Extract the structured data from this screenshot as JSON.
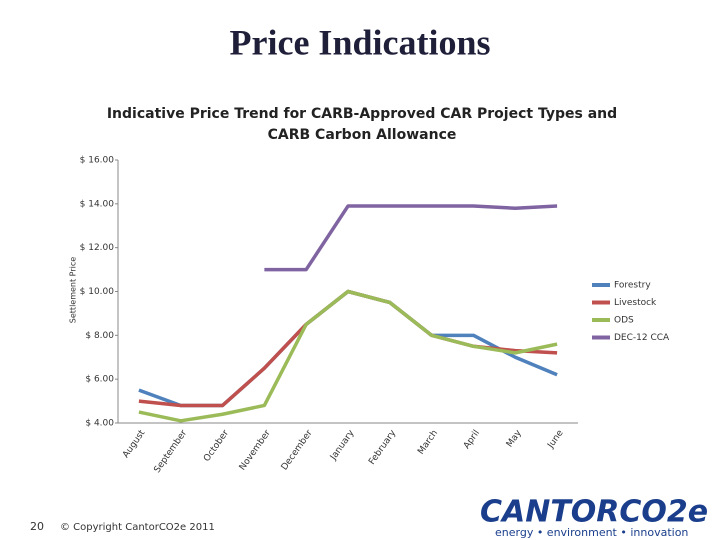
{
  "slide_title": "Price Indications",
  "chart_data": {
    "type": "line",
    "title": "Indicative Price Trend for CARB-Approved CAR Project Types and CARB Carbon Allowance",
    "y_label": "Settlement Price",
    "categories": [
      "August",
      "September",
      "October",
      "November",
      "December",
      "January",
      "February",
      "March",
      "April",
      "May",
      "June"
    ],
    "series": [
      {
        "name": "Forestry",
        "color": "#4f81bd",
        "values": [
          5.5,
          4.8,
          4.8,
          6.5,
          8.5,
          10.0,
          9.5,
          8.0,
          8.0,
          7.0,
          6.2
        ]
      },
      {
        "name": "Livestock",
        "color": "#c0504d",
        "values": [
          5.0,
          4.8,
          4.8,
          6.5,
          8.5,
          10.0,
          9.5,
          8.0,
          7.5,
          7.3,
          7.2
        ]
      },
      {
        "name": "ODS",
        "color": "#9bbb59",
        "values": [
          4.5,
          4.1,
          4.4,
          4.8,
          8.5,
          10.0,
          9.5,
          8.0,
          7.5,
          7.2,
          7.6
        ]
      },
      {
        "name": "DEC-12 CCA",
        "color": "#8064a2",
        "values": [
          null,
          null,
          null,
          11.0,
          11.0,
          13.9,
          13.9,
          13.9,
          13.9,
          13.8,
          13.9
        ]
      }
    ],
    "ylim": [
      4,
      16
    ],
    "yticks": [
      {
        "value": 4,
        "label": "$ 4.00"
      },
      {
        "value": 6,
        "label": "$ 6.00"
      },
      {
        "value": 8,
        "label": "$ 8.00"
      },
      {
        "value": 10,
        "label": "$ 10.00"
      },
      {
        "value": 12,
        "label": "$ 12.00"
      },
      {
        "value": 14,
        "label": "$ 14.00"
      },
      {
        "value": 16,
        "label": "$ 16.00"
      }
    ],
    "grid": false,
    "legend": "right"
  },
  "footer": {
    "page_number": "20",
    "copyright": "© Copyright CantorCO2e 2011",
    "logo": "CANTORCO2e",
    "tagline": "energy • environment • innovation"
  }
}
